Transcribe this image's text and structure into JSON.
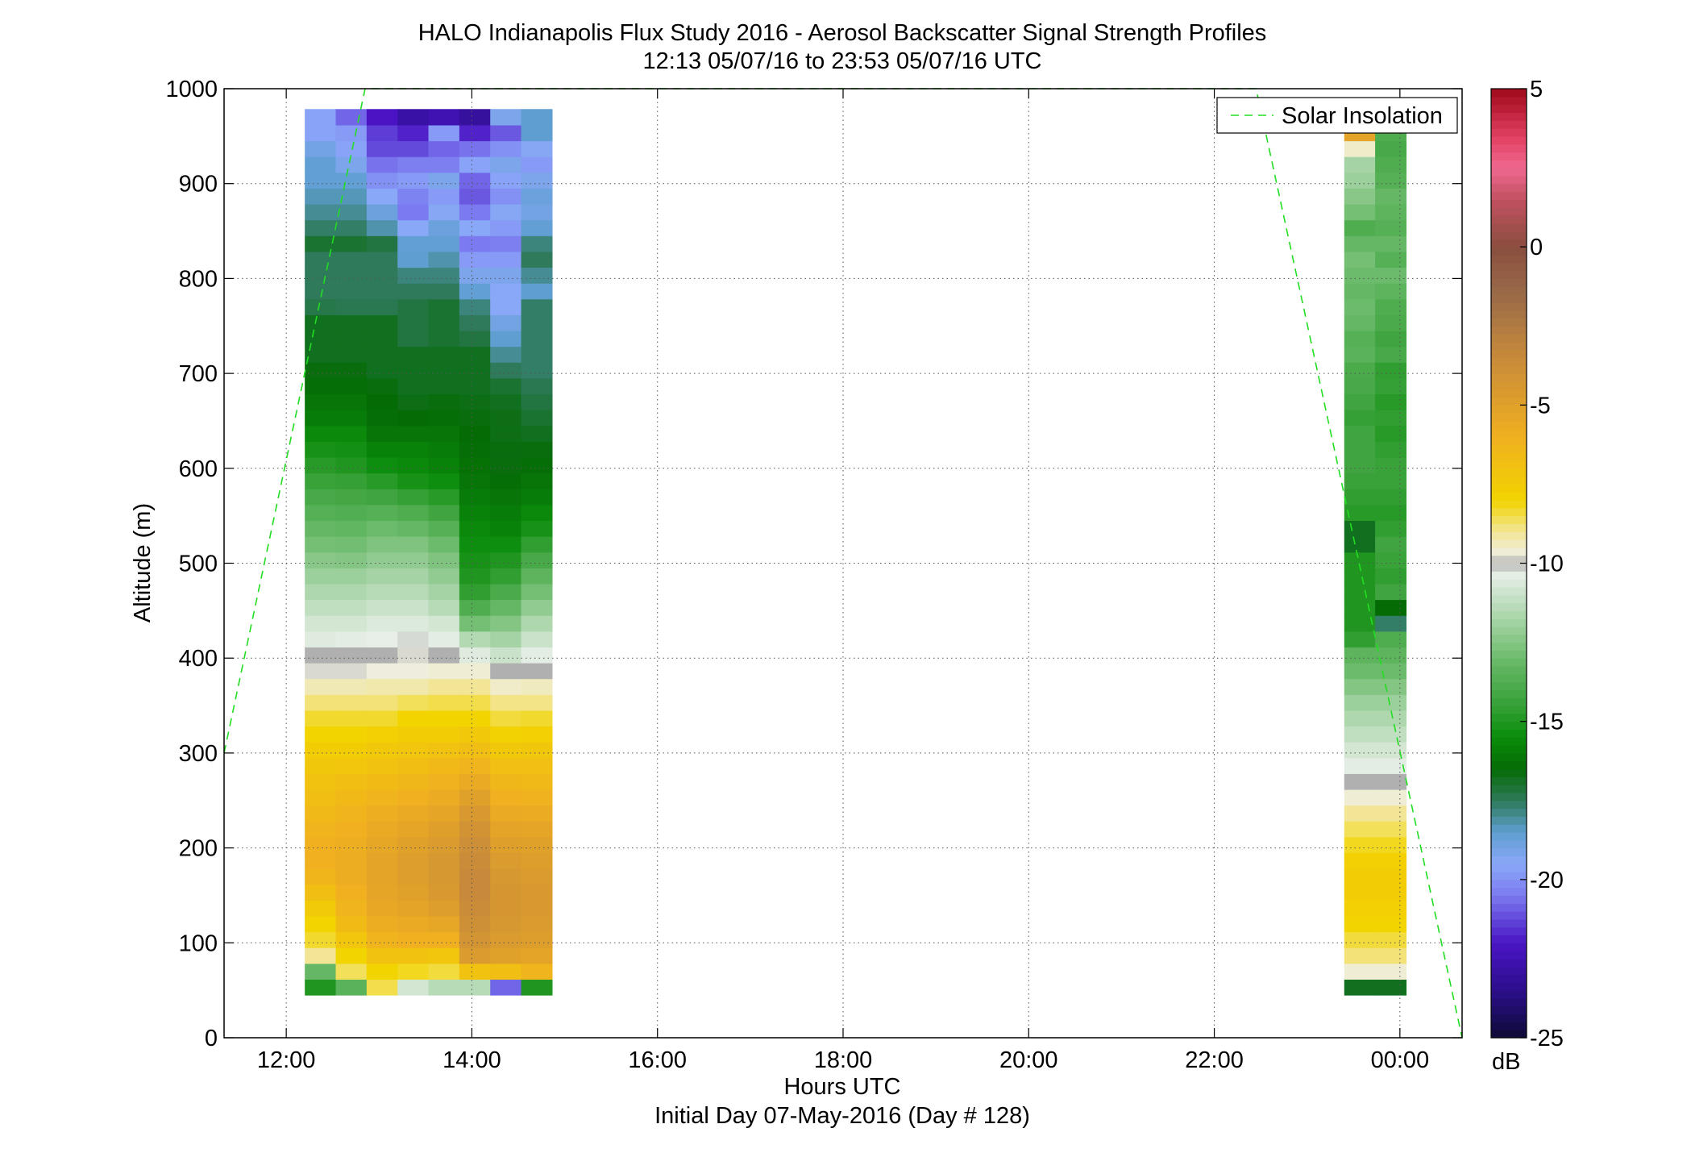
{
  "chart_data": {
    "type": "heatmap",
    "title": "HALO Indianapolis Flux Study 2016 - Aerosol Backscatter Signal Strength Profiles",
    "subtitle": "12:13 05/07/16 to 23:53 05/07/16  UTC",
    "xlabel": "Hours UTC",
    "ylabel": "Altitude (m)",
    "footnote": "Initial Day 07-May-2016 (Day # 128)",
    "xlim": [
      11.33,
      24.67
    ],
    "ylim": [
      0,
      1000
    ],
    "xticks": [
      {
        "value": 12,
        "label": "12:00"
      },
      {
        "value": 14,
        "label": "14:00"
      },
      {
        "value": 16,
        "label": "16:00"
      },
      {
        "value": 18,
        "label": "18:00"
      },
      {
        "value": 20,
        "label": "20:00"
      },
      {
        "value": 22,
        "label": "22:00"
      },
      {
        "value": 24,
        "label": "00:00"
      }
    ],
    "yticks": [
      {
        "value": 0,
        "label": "0"
      },
      {
        "value": 100,
        "label": "100"
      },
      {
        "value": 200,
        "label": "200"
      },
      {
        "value": 300,
        "label": "300"
      },
      {
        "value": 400,
        "label": "400"
      },
      {
        "value": 500,
        "label": "500"
      },
      {
        "value": 600,
        "label": "600"
      },
      {
        "value": 700,
        "label": "700"
      },
      {
        "value": 800,
        "label": "800"
      },
      {
        "value": 900,
        "label": "900"
      },
      {
        "value": 1000,
        "label": "1000"
      }
    ],
    "grid": true,
    "grid_style": "dotted",
    "colorbar": {
      "label": "dB",
      "range": [
        -25,
        5
      ],
      "ticks": [
        {
          "value": 5,
          "label": "5"
        },
        {
          "value": 0,
          "label": "0"
        },
        {
          "value": -5,
          "label": "-5"
        },
        {
          "value": -10,
          "label": "-10"
        },
        {
          "value": -15,
          "label": "-15"
        },
        {
          "value": -20,
          "label": "-20"
        },
        {
          "value": -25,
          "label": "-25"
        }
      ],
      "stops": [
        {
          "value": -25,
          "color": "#0d0a36"
        },
        {
          "value": -23.5,
          "color": "#2b0f8a"
        },
        {
          "value": -22,
          "color": "#4a14c4"
        },
        {
          "value": -20.5,
          "color": "#7b7af0"
        },
        {
          "value": -19.5,
          "color": "#8aa8f8"
        },
        {
          "value": -18.5,
          "color": "#5e9ed0"
        },
        {
          "value": -17.5,
          "color": "#2e7a5a"
        },
        {
          "value": -16.5,
          "color": "#056b05"
        },
        {
          "value": -15.5,
          "color": "#0a8c0a"
        },
        {
          "value": -14.5,
          "color": "#35a035"
        },
        {
          "value": -13,
          "color": "#6cbb6c"
        },
        {
          "value": -11.5,
          "color": "#b3d9b3"
        },
        {
          "value": -10.3,
          "color": "#e8efe8"
        },
        {
          "value": -10,
          "color": "#b0b0b0"
        },
        {
          "value": -9.7,
          "color": "#efeede"
        },
        {
          "value": -9,
          "color": "#f2e696"
        },
        {
          "value": -8,
          "color": "#f2d400"
        },
        {
          "value": -6,
          "color": "#f0b020"
        },
        {
          "value": -3.5,
          "color": "#c88a3a"
        },
        {
          "value": -1.5,
          "color": "#9a6a48"
        },
        {
          "value": 0,
          "color": "#8a4e3e"
        },
        {
          "value": 1.5,
          "color": "#c05060"
        },
        {
          "value": 2.5,
          "color": "#f06890"
        },
        {
          "value": 3.5,
          "color": "#e04060"
        },
        {
          "value": 5,
          "color": "#a0081a"
        }
      ]
    },
    "legend": {
      "position": "top-right",
      "entries": [
        {
          "label": "Solar Insolation",
          "color": "#22dd22",
          "style": "dashed"
        }
      ]
    },
    "cell_height_m": 16.67,
    "first_cell_bottom_m": 45,
    "blocks": [
      {
        "x_start": 12.2,
        "col_width_h": 0.333,
        "columns": [
          [
            -15.0,
            -13.2,
            -9.0,
            -8.3,
            -8.0,
            -7.5,
            -6.8,
            -6.3,
            -6.0,
            -6.0,
            -6.2,
            -6.5,
            -6.8,
            -7.0,
            -7.3,
            -7.6,
            -8.0,
            -8.3,
            -8.8,
            -9.3,
            -9.8,
            -10.0,
            -10.5,
            -10.8,
            -11.2,
            -11.6,
            -12.0,
            -12.4,
            -12.8,
            -13.2,
            -13.6,
            -14.0,
            -14.4,
            -14.8,
            -15.2,
            -15.6,
            -16.0,
            -16.2,
            -16.4,
            -16.6,
            -16.8,
            -16.8,
            -16.8,
            -17.3,
            -17.5,
            -17.5,
            -17.5,
            -17.0,
            -17.6,
            -18.0,
            -18.3,
            -18.6,
            -18.6,
            -19.0,
            -19.6,
            -19.6
          ],
          [
            -13.5,
            -8.6,
            -8.0,
            -7.2,
            -6.6,
            -6.2,
            -6.0,
            -5.8,
            -5.8,
            -5.9,
            -6.0,
            -6.2,
            -6.5,
            -6.8,
            -7.2,
            -7.6,
            -8.0,
            -8.3,
            -8.8,
            -9.3,
            -9.8,
            -10.0,
            -10.4,
            -10.8,
            -11.2,
            -11.6,
            -12.0,
            -12.5,
            -12.9,
            -13.3,
            -13.7,
            -14.1,
            -14.5,
            -15.0,
            -15.3,
            -15.6,
            -16.0,
            -16.2,
            -16.4,
            -16.6,
            -16.8,
            -16.8,
            -16.8,
            -17.4,
            -17.5,
            -17.5,
            -17.5,
            -17.0,
            -17.6,
            -18.0,
            -18.3,
            -18.6,
            -19.2,
            -19.6,
            -19.8,
            -20.8
          ],
          [
            -8.5,
            -8.0,
            -7.0,
            -6.2,
            -5.8,
            -5.5,
            -5.3,
            -5.2,
            -5.2,
            -5.4,
            -5.6,
            -5.9,
            -6.2,
            -6.6,
            -7.0,
            -7.4,
            -7.8,
            -8.3,
            -8.8,
            -9.2,
            -9.7,
            -10.0,
            -10.3,
            -10.6,
            -11.0,
            -11.4,
            -11.8,
            -12.2,
            -12.6,
            -13.0,
            -13.6,
            -14.2,
            -14.8,
            -15.4,
            -15.8,
            -16.2,
            -16.4,
            -16.5,
            -16.6,
            -16.8,
            -16.8,
            -16.8,
            -16.8,
            -17.4,
            -17.5,
            -17.5,
            -17.5,
            -17.2,
            -18.2,
            -18.8,
            -19.5,
            -20.0,
            -20.6,
            -21.2,
            -21.4,
            -22.0
          ],
          [
            -10.8,
            -8.2,
            -7.0,
            -6.0,
            -5.6,
            -5.2,
            -5.0,
            -4.8,
            -4.8,
            -5.0,
            -5.3,
            -5.6,
            -6.0,
            -6.4,
            -6.8,
            -7.2,
            -7.6,
            -8.0,
            -8.6,
            -9.2,
            -9.7,
            -9.8,
            -10.2,
            -10.6,
            -11.0,
            -11.4,
            -11.8,
            -12.2,
            -12.6,
            -13.2,
            -13.8,
            -14.5,
            -15.2,
            -15.6,
            -15.8,
            -16.2,
            -16.5,
            -16.7,
            -16.8,
            -16.8,
            -16.8,
            -17.2,
            -17.2,
            -17.2,
            -17.5,
            -17.8,
            -18.5,
            -18.6,
            -19.5,
            -20.5,
            -20.3,
            -19.8,
            -20.4,
            -21.2,
            -21.8,
            -22.8
          ],
          [
            -11.4,
            -8.4,
            -7.2,
            -6.0,
            -5.4,
            -4.8,
            -4.5,
            -4.4,
            -4.4,
            -4.6,
            -4.9,
            -5.3,
            -5.7,
            -6.1,
            -6.5,
            -7.0,
            -7.6,
            -8.0,
            -8.5,
            -9.0,
            -9.6,
            -10.0,
            -10.4,
            -10.8,
            -11.4,
            -11.8,
            -12.2,
            -12.6,
            -13.0,
            -13.6,
            -14.2,
            -14.8,
            -15.4,
            -15.8,
            -16.0,
            -16.2,
            -16.4,
            -16.6,
            -16.8,
            -16.8,
            -16.8,
            -17.0,
            -17.0,
            -17.0,
            -17.5,
            -17.8,
            -18.2,
            -18.6,
            -18.8,
            -19.4,
            -19.8,
            -19.2,
            -20.4,
            -20.8,
            -19.8,
            -22.5
          ],
          [
            -11.4,
            -7.0,
            -4.6,
            -4.2,
            -3.9,
            -3.6,
            -3.5,
            -3.5,
            -3.6,
            -3.8,
            -4.1,
            -4.5,
            -5.0,
            -5.6,
            -6.2,
            -6.8,
            -7.4,
            -8.0,
            -8.5,
            -9.0,
            -9.6,
            -10.5,
            -11.5,
            -12.8,
            -13.8,
            -14.6,
            -15.0,
            -15.2,
            -15.4,
            -15.6,
            -15.8,
            -16.0,
            -16.2,
            -16.3,
            -16.4,
            -16.5,
            -16.6,
            -16.7,
            -16.8,
            -16.8,
            -16.8,
            -17.2,
            -17.5,
            -17.8,
            -18.6,
            -19.2,
            -19.8,
            -20.5,
            -19.5,
            -20.5,
            -21.0,
            -20.8,
            -19.6,
            -20.6,
            -21.8,
            -23.0
          ],
          [
            -20.8,
            -6.8,
            -5.0,
            -4.6,
            -4.4,
            -4.3,
            -4.3,
            -4.4,
            -4.6,
            -4.9,
            -5.2,
            -5.6,
            -6.0,
            -6.4,
            -6.9,
            -7.4,
            -7.9,
            -8.4,
            -8.9,
            -9.5,
            -10.0,
            -11.0,
            -11.8,
            -12.5,
            -13.2,
            -13.9,
            -14.6,
            -15.0,
            -15.4,
            -15.8,
            -16.0,
            -16.2,
            -16.4,
            -16.6,
            -16.6,
            -16.7,
            -16.7,
            -16.8,
            -17.0,
            -17.5,
            -18.0,
            -18.5,
            -19.0,
            -19.5,
            -19.5,
            -19.2,
            -19.8,
            -20.4,
            -19.8,
            -19.4,
            -20.0,
            -19.6,
            -19.2,
            -20.0,
            -21.0,
            -19.2
          ],
          [
            -15.0,
            -6.2,
            -5.2,
            -4.8,
            -4.6,
            -4.5,
            -4.5,
            -4.6,
            -4.8,
            -5.0,
            -5.3,
            -5.7,
            -6.1,
            -6.5,
            -6.9,
            -7.3,
            -7.8,
            -8.3,
            -8.9,
            -9.4,
            -10.0,
            -10.4,
            -11.0,
            -11.6,
            -12.2,
            -12.8,
            -13.4,
            -14.0,
            -14.6,
            -15.2,
            -15.6,
            -16.0,
            -16.2,
            -16.4,
            -16.6,
            -16.8,
            -17.0,
            -17.2,
            -17.4,
            -17.6,
            -17.6,
            -17.6,
            -17.6,
            -17.6,
            -18.5,
            -18.0,
            -17.5,
            -17.8,
            -18.6,
            -19.0,
            -18.8,
            -19.2,
            -19.8,
            -19.4,
            -18.5,
            -18.5
          ]
        ]
      },
      {
        "x_start": 23.4,
        "col_width_h": 0.333,
        "columns": [
          [
            -16.8,
            -9.6,
            -8.8,
            -8.4,
            -8.0,
            -7.8,
            -7.6,
            -7.6,
            -7.8,
            -8.2,
            -8.6,
            -9.0,
            -9.6,
            -10.0,
            -10.4,
            -10.8,
            -11.2,
            -11.6,
            -12.0,
            -12.5,
            -13.0,
            -13.4,
            -14.6,
            -15.0,
            -15.0,
            -15.0,
            -15.0,
            -15.0,
            -16.8,
            -16.8,
            -14.8,
            -14.6,
            -14.4,
            -14.2,
            -14.2,
            -14.2,
            -14.5,
            -14.2,
            -14.0,
            -13.9,
            -13.5,
            -13.6,
            -13.2,
            -13.0,
            -13.2,
            -13.0,
            -12.8,
            -13.2,
            -13.8,
            -12.8,
            -12.4,
            -12.0,
            -11.8,
            -9.5,
            -5.2,
            -0.6
          ]
        ],
        "top_cells_note": ""
      },
      {
        "x_start": 23.733,
        "col_width_h": 0.333,
        "columns": [
          [
            -16.8,
            -9.6,
            -8.8,
            -8.4,
            -8.0,
            -7.8,
            -7.6,
            -7.6,
            -7.8,
            -8.2,
            -8.6,
            -9.0,
            -9.6,
            -10.0,
            -10.4,
            -10.8,
            -11.2,
            -11.6,
            -12.0,
            -12.5,
            -13.0,
            -13.4,
            -13.8,
            -17.6,
            -16.5,
            -14.2,
            -14.6,
            -14.4,
            -14.2,
            -14.6,
            -14.8,
            -14.6,
            -14.4,
            -14.4,
            -14.6,
            -14.8,
            -14.6,
            -14.8,
            -14.5,
            -14.6,
            -14.0,
            -14.2,
            -13.9,
            -13.8,
            -13.4,
            -13.0,
            -13.6,
            -13.2,
            -13.6,
            -13.4,
            -13.2,
            -13.6,
            -13.8,
            -14.0,
            -13.8,
            -14.0
          ]
        ]
      }
    ],
    "solar_insolation": [
      {
        "x": 11.33,
        "y": 300
      },
      {
        "x": 12.85,
        "y": 1000
      },
      {
        "x": 22.45,
        "y": 1000
      },
      {
        "x": 24.67,
        "y": 0
      }
    ]
  }
}
